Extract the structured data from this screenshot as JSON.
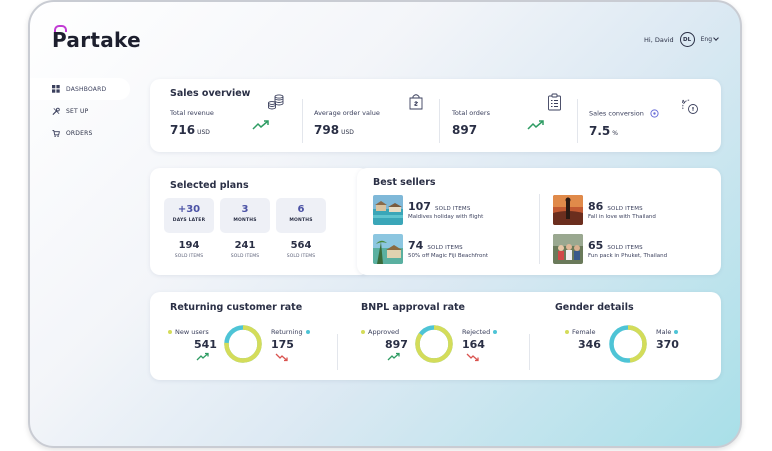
{
  "brand": {
    "logo_text": "artake",
    "logo_initial": "P"
  },
  "header": {
    "greeting": "Hi, David",
    "avatar_initials": "DL",
    "language": "Eng"
  },
  "sidebar": {
    "items": [
      {
        "label": "DASHBOARD",
        "icon": "grid-icon",
        "active": true
      },
      {
        "label": "SET UP",
        "icon": "tools-icon",
        "active": false
      },
      {
        "label": "ORDERS",
        "icon": "cart-icon",
        "active": false
      }
    ]
  },
  "sales_overview": {
    "title": "Sales overview",
    "metrics": [
      {
        "label": "Total revenue",
        "value": "716",
        "unit": "USD",
        "icon": "coins-icon",
        "trend": "up"
      },
      {
        "label": "Average order value",
        "value": "798",
        "unit": "USD",
        "icon": "shopping-bag-icon"
      },
      {
        "label": "Total orders",
        "value": "897",
        "unit": "",
        "icon": "clipboard-icon",
        "trend": "up"
      },
      {
        "label": "Sales conversion",
        "value": "7.5",
        "unit": "%",
        "icon": "conversion-icon"
      }
    ]
  },
  "selected_plans": {
    "title": "Selected plans",
    "plans": [
      {
        "number": "+30",
        "sub": "DAYS LATER",
        "count": "194",
        "count_label": "SOLD ITEMS"
      },
      {
        "number": "3",
        "sub": "MONTHS",
        "count": "241",
        "count_label": "SOLD ITEMS"
      },
      {
        "number": "6",
        "sub": "MONTHS",
        "count": "564",
        "count_label": "SOLD ITEMS"
      }
    ]
  },
  "best_sellers": {
    "title": "Best sellers",
    "items": [
      {
        "count": "107",
        "count_label": "SOLD ITEMS",
        "desc": "Maldives holiday with flight",
        "image": "maldives-resort"
      },
      {
        "count": "86",
        "count_label": "SOLD ITEMS",
        "desc": "Fall in love with Thailand",
        "image": "thailand-sunset"
      },
      {
        "count": "74",
        "count_label": "SOLD ITEMS",
        "desc": "50% off Magic Fiji Beachfront",
        "image": "fiji-beach"
      },
      {
        "count": "65",
        "count_label": "SOLD ITEMS",
        "desc": "Fun pack in Phuket, Thailand",
        "image": "phuket-group"
      }
    ]
  },
  "returning_rate": {
    "title": "Returning customer rate",
    "left_label": "New users",
    "left_value": "541",
    "left_trend": "up",
    "right_label": "Returning",
    "right_value": "175",
    "right_trend": "down",
    "ratio": 0.76
  },
  "bnpl_rate": {
    "title": "BNPL approval rate",
    "left_label": "Approved",
    "left_value": "897",
    "left_trend": "up",
    "right_label": "Rejected",
    "right_value": "164",
    "right_trend": "down",
    "ratio": 0.85
  },
  "gender": {
    "title": "Gender details",
    "left_label": "Female",
    "left_value": "346",
    "right_label": "Male",
    "right_value": "370",
    "ratio": 0.48
  },
  "colors": {
    "yellow": "#d4dc5a",
    "teal": "#4ec4d6",
    "green": "#2e9c63",
    "red": "#d9534f",
    "accent": "#4b52a5",
    "brand": "#c23bd4"
  }
}
